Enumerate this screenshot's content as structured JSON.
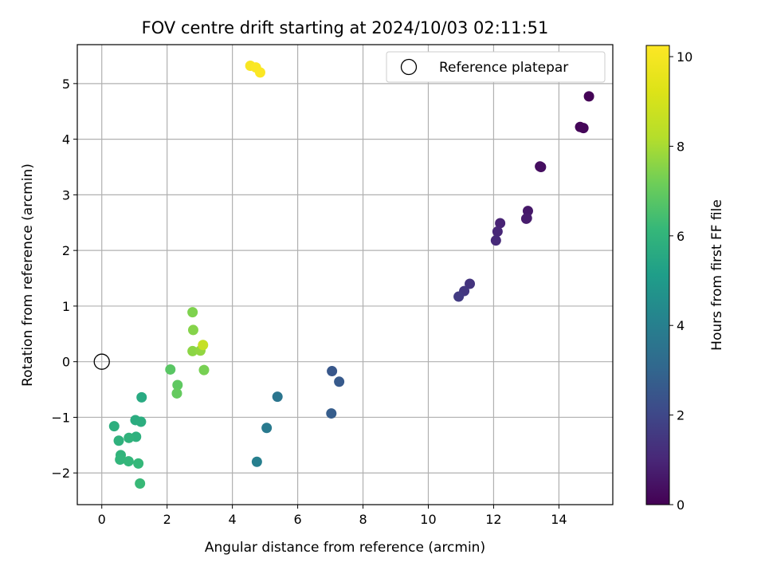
{
  "chart_data": {
    "type": "scatter",
    "title": "FOV centre drift starting at 2024/10/03 02:11:51",
    "xlabel": "Angular distance from reference (arcmin)",
    "ylabel": "Rotation from reference (arcmin)",
    "xlim": [
      -0.75,
      15.65
    ],
    "ylim": [
      -2.57,
      5.7
    ],
    "xticks": [
      0,
      2,
      4,
      6,
      8,
      10,
      12,
      14
    ],
    "yticks": [
      -2,
      -1,
      0,
      1,
      2,
      3,
      4,
      5
    ],
    "xtick_labels": [
      "0",
      "2",
      "4",
      "6",
      "8",
      "10",
      "12",
      "14"
    ],
    "ytick_labels": [
      "−2",
      "−1",
      "0",
      "1",
      "2",
      "3",
      "4",
      "5"
    ],
    "grid": true,
    "legend": {
      "placement": "top-right",
      "entries": [
        "Reference platepar"
      ]
    },
    "reference_point": {
      "x": 0,
      "y": 0
    },
    "colorbar": {
      "label": "Hours from first FF file",
      "range": [
        0,
        10.25
      ],
      "ticks": [
        0,
        2,
        4,
        6,
        8,
        10
      ],
      "tick_labels": [
        "0",
        "2",
        "4",
        "6",
        "8",
        "10"
      ],
      "colormap": "viridis"
    },
    "points": [
      {
        "x": 14.92,
        "y": 4.77,
        "c": 0.05
      },
      {
        "x": 14.65,
        "y": 4.22,
        "c": 0.1
      },
      {
        "x": 14.75,
        "y": 4.2,
        "c": 0.15
      },
      {
        "x": 13.42,
        "y": 3.51,
        "c": 0.3
      },
      {
        "x": 13.45,
        "y": 3.5,
        "c": 0.35
      },
      {
        "x": 13.05,
        "y": 2.71,
        "c": 0.6
      },
      {
        "x": 13.0,
        "y": 2.57,
        "c": 0.65
      },
      {
        "x": 13.02,
        "y": 2.58,
        "c": 0.7
      },
      {
        "x": 12.2,
        "y": 2.49,
        "c": 0.9
      },
      {
        "x": 12.12,
        "y": 2.34,
        "c": 1.0
      },
      {
        "x": 12.07,
        "y": 2.18,
        "c": 1.1
      },
      {
        "x": 11.27,
        "y": 1.4,
        "c": 1.4
      },
      {
        "x": 11.1,
        "y": 1.27,
        "c": 1.5
      },
      {
        "x": 10.93,
        "y": 1.17,
        "c": 1.6
      },
      {
        "x": 7.05,
        "y": -0.17,
        "c": 2.5
      },
      {
        "x": 7.27,
        "y": -0.36,
        "c": 2.6
      },
      {
        "x": 7.03,
        "y": -0.93,
        "c": 2.7
      },
      {
        "x": 5.38,
        "y": -0.63,
        "c": 3.6
      },
      {
        "x": 5.05,
        "y": -1.19,
        "c": 3.8
      },
      {
        "x": 4.75,
        "y": -1.8,
        "c": 4.0
      },
      {
        "x": 1.22,
        "y": -0.64,
        "c": 5.6
      },
      {
        "x": 1.03,
        "y": -1.05,
        "c": 5.7
      },
      {
        "x": 1.2,
        "y": -1.08,
        "c": 5.75
      },
      {
        "x": 0.38,
        "y": -1.16,
        "c": 5.8
      },
      {
        "x": 1.05,
        "y": -1.35,
        "c": 5.85
      },
      {
        "x": 0.52,
        "y": -1.42,
        "c": 5.9
      },
      {
        "x": 0.83,
        "y": -1.37,
        "c": 5.95
      },
      {
        "x": 0.58,
        "y": -1.68,
        "c": 6.0
      },
      {
        "x": 0.56,
        "y": -1.76,
        "c": 6.05
      },
      {
        "x": 0.82,
        "y": -1.79,
        "c": 6.1
      },
      {
        "x": 1.12,
        "y": -1.83,
        "c": 6.15
      },
      {
        "x": 1.17,
        "y": -2.19,
        "c": 6.2
      },
      {
        "x": 2.1,
        "y": -0.14,
        "c": 6.8
      },
      {
        "x": 2.32,
        "y": -0.42,
        "c": 6.9
      },
      {
        "x": 2.3,
        "y": -0.57,
        "c": 7.0
      },
      {
        "x": 3.13,
        "y": -0.15,
        "c": 7.3
      },
      {
        "x": 2.78,
        "y": 0.89,
        "c": 7.4
      },
      {
        "x": 2.8,
        "y": 0.57,
        "c": 7.5
      },
      {
        "x": 2.78,
        "y": 0.19,
        "c": 7.6
      },
      {
        "x": 3.02,
        "y": 0.2,
        "c": 7.7
      },
      {
        "x": 3.1,
        "y": 0.3,
        "c": 8.6
      },
      {
        "x": 4.55,
        "y": 5.32,
        "c": 10.1
      },
      {
        "x": 4.72,
        "y": 5.29,
        "c": 10.15
      },
      {
        "x": 4.85,
        "y": 5.2,
        "c": 10.2
      }
    ]
  }
}
